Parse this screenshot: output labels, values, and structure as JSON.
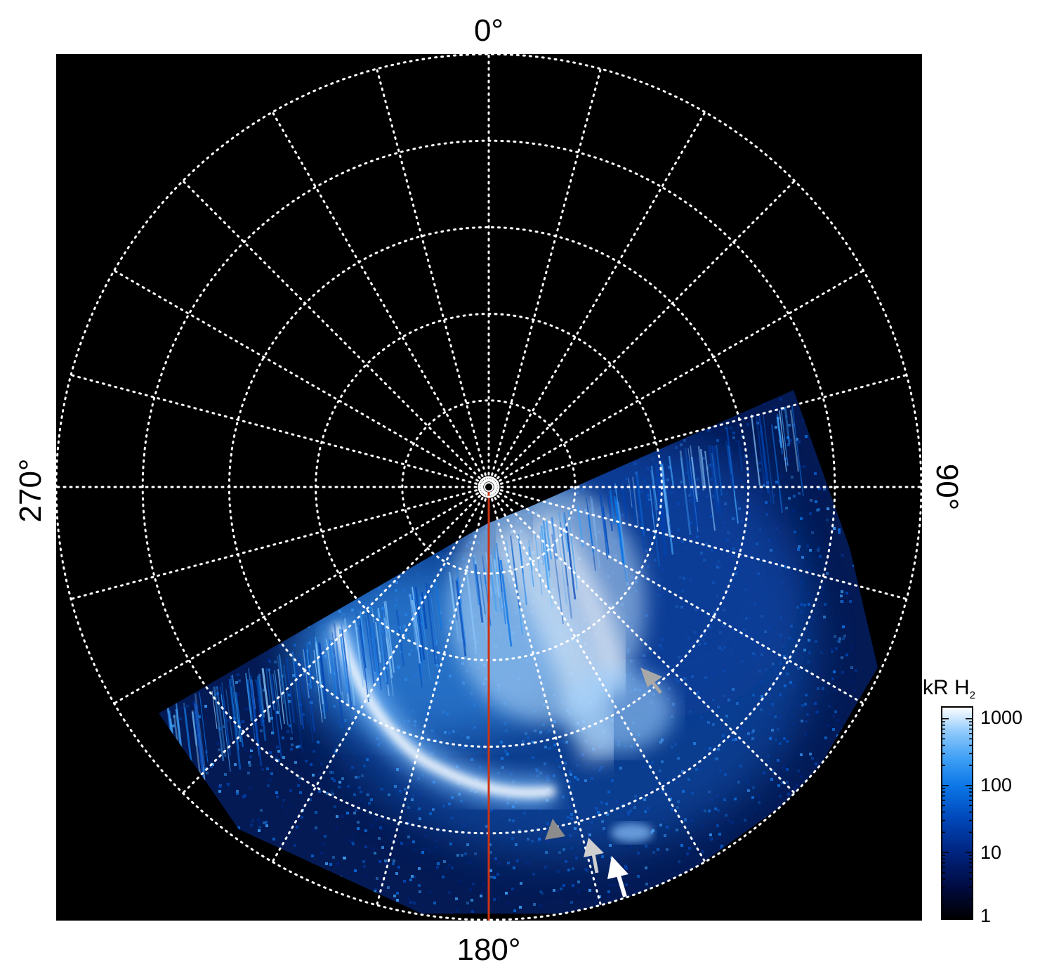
{
  "figure": {
    "labels": {
      "top": "0°",
      "bottom": "180°",
      "left": "270°",
      "right": "90°"
    },
    "colorbar": {
      "title_main": "kR H",
      "title_sub": "2",
      "tick_labels": [
        "1000",
        "100",
        "10",
        "1"
      ],
      "tick_values": [
        1000,
        100,
        10,
        1
      ],
      "scale": "log",
      "range": [
        1,
        1500
      ],
      "colormap": [
        "#000000",
        "#000a3c",
        "#00217a",
        "#0046b8",
        "#0a74e6",
        "#3fa0f5",
        "#8cc8fb",
        "#ffffff"
      ]
    },
    "plot": {
      "background": "#000000",
      "grid_color": "#ffffff",
      "grid_style": "dotted",
      "meridian_spacing_deg": 15,
      "latitude_circle_count": 5,
      "meridian_line_color": "#cc3311"
    },
    "arrows": [
      {
        "name": "arrow-gray-1",
        "color": "#a8a8a8"
      },
      {
        "name": "arrow-gray-2",
        "color": "#8c8c8c"
      },
      {
        "name": "arrow-gray-3",
        "color": "#cfcfcf"
      },
      {
        "name": "arrow-white",
        "color": "#ffffff"
      }
    ]
  }
}
